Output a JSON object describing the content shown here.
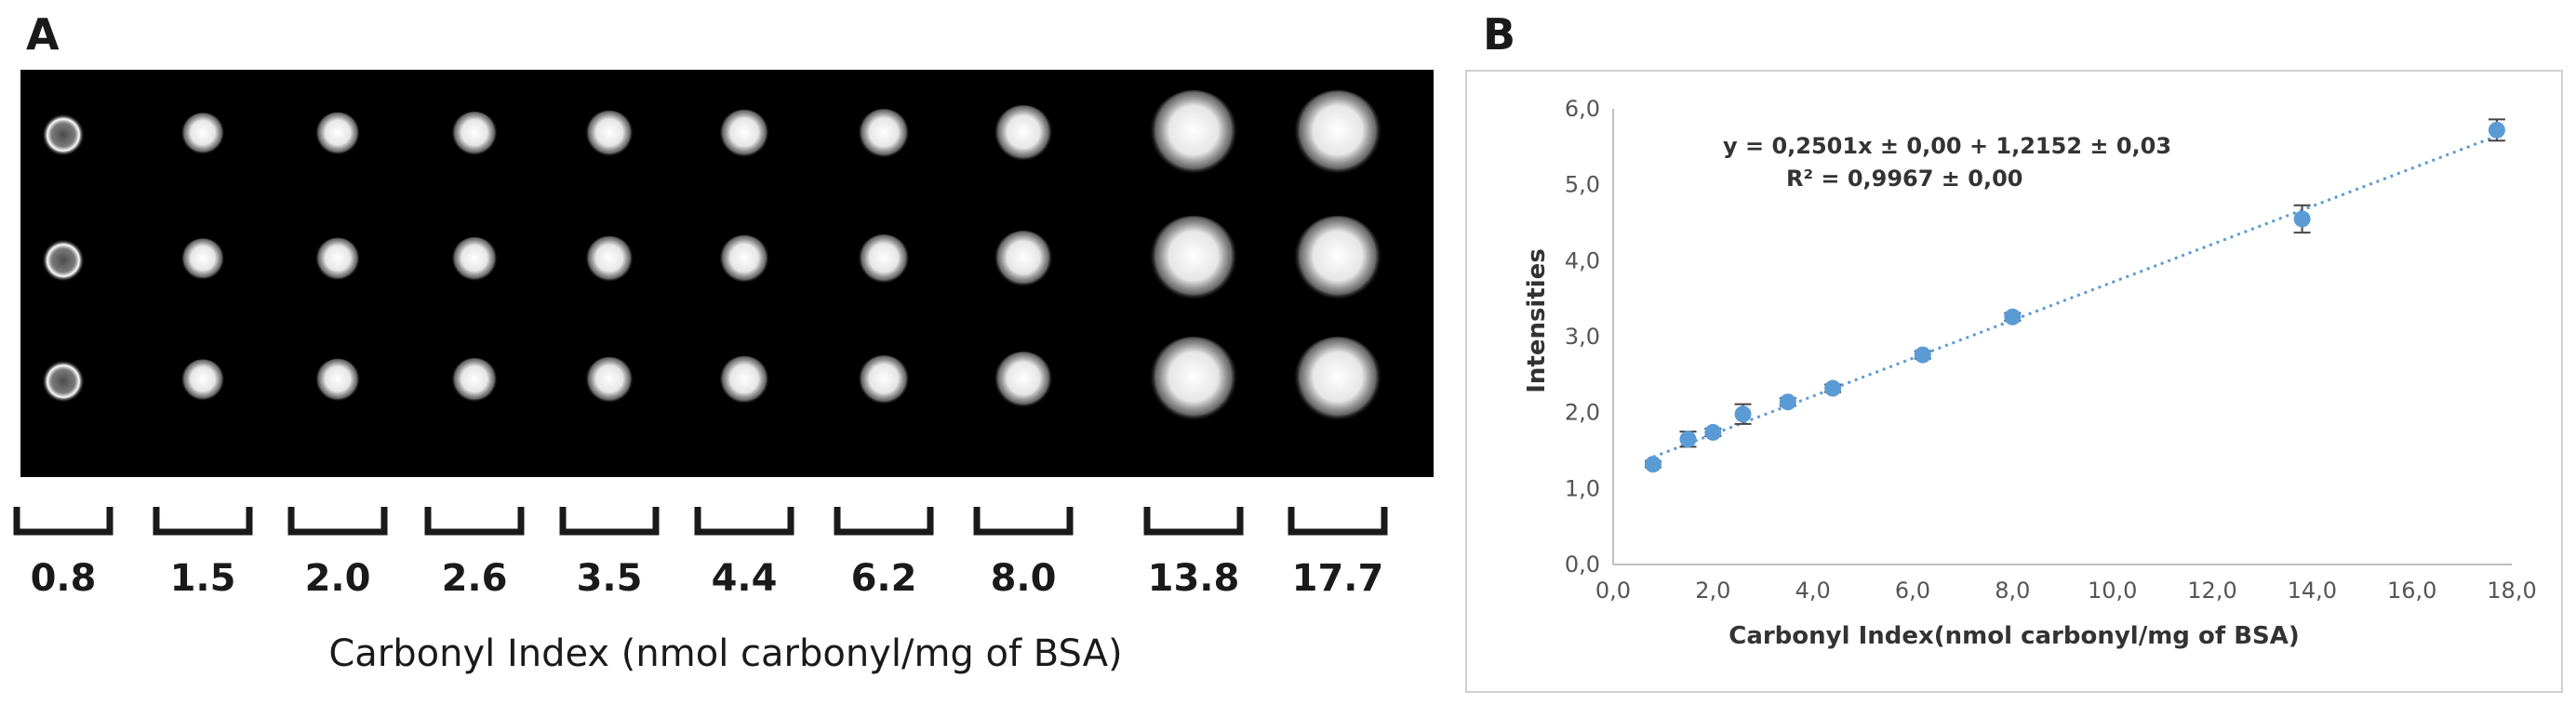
{
  "panelA": {
    "letter": "A",
    "lanes": [
      "0.8",
      "1.5",
      "2.0",
      "2.6",
      "3.5",
      "4.4",
      "6.2",
      "8.0",
      "13.8",
      "17.7"
    ],
    "x_title": "Carbonyl Index (nmol carbonyl/mg of BSA)"
  },
  "panelB": {
    "letter": "B",
    "equation_line1": "y = 0,2501x ± 0,00 + 1,2152 ± 0,03",
    "equation_line2": "R² = 0,9967 ± 0,00"
  },
  "chart_data": {
    "type": "scatter",
    "title": "",
    "xlabel": "Carbonyl Index(nmol carbonyl/mg of BSA)",
    "ylabel": "Intensities",
    "xlim": [
      0,
      18
    ],
    "ylim": [
      0,
      6
    ],
    "x_ticks": [
      "0,0",
      "2,0",
      "4,0",
      "6,0",
      "8,0",
      "10,0",
      "12,0",
      "14,0",
      "16,0",
      "18,0"
    ],
    "y_ticks": [
      "0,0",
      "1,0",
      "2,0",
      "3,0",
      "4,0",
      "5,0",
      "6,0"
    ],
    "grid": false,
    "points": [
      {
        "x": 0.8,
        "y": 1.32,
        "err": 0.04
      },
      {
        "x": 1.5,
        "y": 1.65,
        "err": 0.1
      },
      {
        "x": 2.0,
        "y": 1.74,
        "err": 0.05
      },
      {
        "x": 2.6,
        "y": 1.98,
        "err": 0.13
      },
      {
        "x": 3.5,
        "y": 2.14,
        "err": 0.05
      },
      {
        "x": 4.4,
        "y": 2.32,
        "err": 0.05
      },
      {
        "x": 6.2,
        "y": 2.76,
        "err": 0.05
      },
      {
        "x": 8.0,
        "y": 3.26,
        "err": 0.05
      },
      {
        "x": 13.8,
        "y": 4.55,
        "err": 0.18
      },
      {
        "x": 17.7,
        "y": 5.72,
        "err": 0.14
      }
    ],
    "trendline": {
      "slope": 0.2501,
      "intercept": 1.2152,
      "x_range": [
        0.8,
        17.7
      ],
      "style": "dotted"
    },
    "colors": {
      "point": "#5b9bd5",
      "trend": "#5b9bd5",
      "axis": "#bfbfbf"
    }
  }
}
